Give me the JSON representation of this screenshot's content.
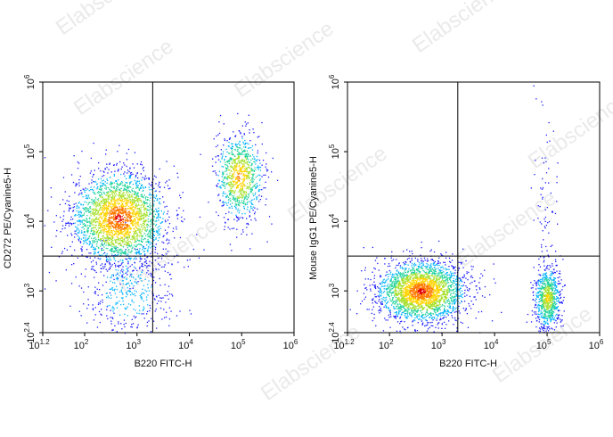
{
  "watermark": "Elabscience",
  "colors": {
    "density": [
      "#1a1aff",
      "#00b4ff",
      "#22d39a",
      "#a6e02a",
      "#ffd400",
      "#ff7a00",
      "#e00000"
    ],
    "axis": "#000000",
    "watermark": "#d9d9d9"
  },
  "chart_data": [
    {
      "type": "scatter",
      "subtype": "flow-cytometry-density-dot-plot",
      "xlabel": "B220 FITC-H",
      "ylabel": "CD272 PE/Cyanine5-H",
      "x_scale": "log",
      "y_scale": "log",
      "xlim_exp": [
        1.2,
        6
      ],
      "ylim_exp": [
        2.4,
        6
      ],
      "x_tick_exponents": [
        1.2,
        2,
        3,
        4,
        5,
        6
      ],
      "y_tick_exponents": [
        2.4,
        3,
        4,
        5,
        6
      ],
      "x_tick_labels": [
        "1.2",
        "2",
        "3",
        "4",
        "5",
        "6"
      ],
      "y_tick_labels": [
        "2.4",
        "3",
        "4",
        "5",
        "6"
      ],
      "tick_base": "10",
      "quadrant_gate": {
        "x_exp": 3.3,
        "y_exp": 3.5
      },
      "populations": [
        {
          "x_exp": 2.65,
          "y_exp": 4.05,
          "sx": 0.45,
          "sy": 0.33,
          "n": 2600,
          "peak": 6
        },
        {
          "x_exp": 4.95,
          "y_exp": 4.65,
          "sx": 0.22,
          "sy": 0.3,
          "n": 900,
          "peak": 5
        },
        {
          "x_exp": 2.8,
          "y_exp": 3.0,
          "sx": 0.45,
          "sy": 0.35,
          "n": 420,
          "peak": 1
        }
      ]
    },
    {
      "type": "scatter",
      "subtype": "flow-cytometry-density-dot-plot",
      "xlabel": "B220 FITC-H",
      "ylabel": "Mouse IgG1 PE/Cyanine5-H",
      "x_scale": "log",
      "y_scale": "log",
      "xlim_exp": [
        1.2,
        6
      ],
      "ylim_exp": [
        2.4,
        6
      ],
      "x_tick_exponents": [
        1.2,
        2,
        3,
        4,
        5,
        6
      ],
      "y_tick_exponents": [
        2.4,
        3,
        4,
        5,
        6
      ],
      "x_tick_labels": [
        "1.2",
        "2",
        "3",
        "4",
        "5",
        "6"
      ],
      "y_tick_labels": [
        "2.4",
        "3",
        "4",
        "5",
        "6"
      ],
      "tick_base": "10",
      "quadrant_gate": {
        "x_exp": 3.3,
        "y_exp": 3.5
      },
      "populations": [
        {
          "x_exp": 2.6,
          "y_exp": 3.0,
          "sx": 0.42,
          "sy": 0.22,
          "n": 2600,
          "peak": 6
        },
        {
          "x_exp": 5.0,
          "y_exp": 2.9,
          "sx": 0.12,
          "sy": 0.22,
          "n": 800,
          "peak": 4
        },
        {
          "x_exp": 4.95,
          "y_exp": 4.3,
          "sx": 0.12,
          "sy": 0.6,
          "n": 70,
          "peak": 0
        }
      ]
    }
  ]
}
